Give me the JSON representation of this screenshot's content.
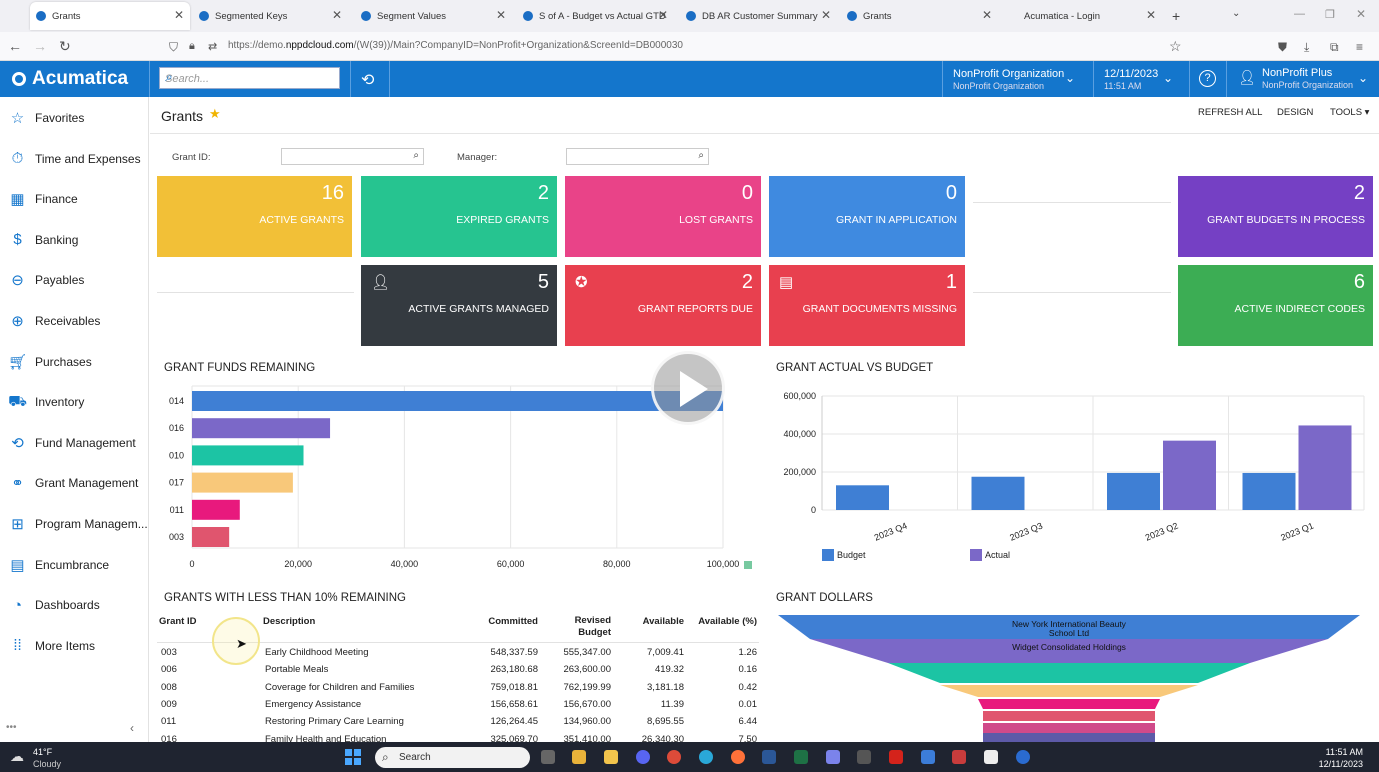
{
  "browser": {
    "tabs": [
      {
        "label": "Grants",
        "active": true
      },
      {
        "label": "Segmented Keys"
      },
      {
        "label": "Segment Values"
      },
      {
        "label": "S of A - Budget vs Actual GTD"
      },
      {
        "label": "DB AR Customer Summary"
      },
      {
        "label": "Grants"
      },
      {
        "label": "Acumatica - Login"
      }
    ],
    "url_prefix": "https://demo.",
    "url_domain": "nppdcloud.com",
    "url_rest": "/(W(39))/Main?CompanyID=NonProfit+Organization&ScreenId=DB000030"
  },
  "header": {
    "logo": "Acumatica",
    "search_placeholder": "Search...",
    "company": "NonProfit Organization",
    "branch": "NonProfit Organization",
    "date": "12/11/2023",
    "time": "11:51 AM",
    "user": "NonProfit Plus",
    "user_org": "NonProfit Organization"
  },
  "sidebar": {
    "items": [
      {
        "label": "Favorites",
        "icon": "star-icon"
      },
      {
        "label": "Time and Expenses",
        "icon": "clock-icon"
      },
      {
        "label": "Finance",
        "icon": "calculator-icon"
      },
      {
        "label": "Banking",
        "icon": "dollar-icon"
      },
      {
        "label": "Payables",
        "icon": "minus-circle-icon"
      },
      {
        "label": "Receivables",
        "icon": "plus-circle-icon"
      },
      {
        "label": "Purchases",
        "icon": "cart-icon"
      },
      {
        "label": "Inventory",
        "icon": "truck-icon"
      },
      {
        "label": "Fund Management",
        "icon": "fund-icon"
      },
      {
        "label": "Grant Management",
        "icon": "handshake-icon"
      },
      {
        "label": "Program Managem...",
        "icon": "org-chart-icon"
      },
      {
        "label": "Encumbrance",
        "icon": "ledger-icon"
      },
      {
        "label": "Dashboards",
        "icon": "gauge-icon"
      },
      {
        "label": "More Items",
        "icon": "grid-icon"
      }
    ]
  },
  "page": {
    "title": "Grants",
    "refresh_all": "REFRESH ALL",
    "design": "DESIGN",
    "tools": "TOOLS",
    "grant_id_label": "Grant ID:",
    "manager_label": "Manager:"
  },
  "tiles": [
    {
      "value": "16",
      "label": "ACTIVE GRANTS",
      "color": "#f2c037"
    },
    {
      "value": "2",
      "label": "EXPIRED GRANTS",
      "color": "#26c490"
    },
    {
      "value": "0",
      "label": "LOST GRANTS",
      "color": "#e94388"
    },
    {
      "value": "0",
      "label": "GRANT IN APPLICATION",
      "color": "#3f8ae0"
    },
    {
      "value": "2",
      "label": "GRANT BUDGETS IN PROCESS",
      "color": "#7540c4"
    },
    {
      "value": "5",
      "label": "ACTIVE GRANTS MANAGED",
      "color": "#343a40"
    },
    {
      "value": "2",
      "label": "GRANT REPORTS DUE",
      "color": "#e8404f"
    },
    {
      "value": "1",
      "label": "GRANT DOCUMENTS MISSING",
      "color": "#e8404f"
    },
    {
      "value": "6",
      "label": "ACTIVE INDIRECT CODES",
      "color": "#3cad54"
    }
  ],
  "sections": {
    "funds": "GRANT FUNDS REMAINING",
    "actual_budget": "GRANT ACTUAL VS BUDGET",
    "less10": "GRANTS WITH LESS THAN 10% REMAINING",
    "dollars": "GRANT DOLLARS"
  },
  "chart_data": [
    {
      "type": "bar",
      "orientation": "horizontal",
      "categories": [
        "014",
        "016",
        "010",
        "017",
        "011",
        "003"
      ],
      "values": [
        100000,
        26000,
        21000,
        19000,
        9000,
        7000
      ],
      "colors": [
        "#3f7fd4",
        "#7b68c8",
        "#1cc4a4",
        "#f8c87a",
        "#e8197d",
        "#e0556e"
      ],
      "xlim": [
        0,
        100000
      ],
      "ticks": [
        "0",
        "20,000",
        "40,000",
        "60,000",
        "80,000",
        "100,000"
      ]
    },
    {
      "type": "bar",
      "categories": [
        "2023 Q4",
        "2023 Q3",
        "2023 Q2",
        "2023 Q1"
      ],
      "series": [
        {
          "name": "Budget",
          "values": [
            130000,
            175000,
            195000,
            195000
          ],
          "color": "#3f7fd4"
        },
        {
          "name": "Actual",
          "values": [
            0,
            0,
            365000,
            445000
          ],
          "color": "#7b68c8"
        }
      ],
      "ylim": [
        0,
        600000
      ],
      "yticks": [
        "0",
        "200,000",
        "400,000",
        "600,000"
      ],
      "legend": "bottom"
    },
    {
      "type": "funnel",
      "labels": [
        "New York International Beauty School Ltd",
        "Widget Consolidated Holdings"
      ],
      "colors": [
        "#3f7fd4",
        "#7b68c8",
        "#1cc4a4",
        "#f8c87a",
        "#e8197d",
        "#e0556e",
        "#d04a8a"
      ]
    }
  ],
  "table": {
    "headers": [
      "Grant ID",
      "Description",
      "Committed",
      "Revised Budget",
      "Available",
      "Available (%)"
    ],
    "rows": [
      [
        "003",
        "Early Childhood Meeting",
        "548,337.59",
        "555,347.00",
        "7,009.41",
        "1.26"
      ],
      [
        "006",
        "Portable Meals",
        "263,180.68",
        "263,600.00",
        "419.32",
        "0.16"
      ],
      [
        "008",
        "Coverage for Children and Families",
        "759,018.81",
        "762,199.99",
        "3,181.18",
        "0.42"
      ],
      [
        "009",
        "Emergency Assistance",
        "156,658.61",
        "156,670.00",
        "11.39",
        "0.01"
      ],
      [
        "011",
        "Restoring Primary Care Learning",
        "126,264.45",
        "134,960.00",
        "8,695.55",
        "6.44"
      ],
      [
        "016",
        "Family Health and Education",
        "325,069.70",
        "351,410.00",
        "26,340.30",
        "7.50"
      ]
    ]
  },
  "taskbar": {
    "weather_temp": "41°F",
    "weather_desc": "Cloudy",
    "search": "Search",
    "time": "11:51 AM",
    "date": "12/11/2023"
  }
}
